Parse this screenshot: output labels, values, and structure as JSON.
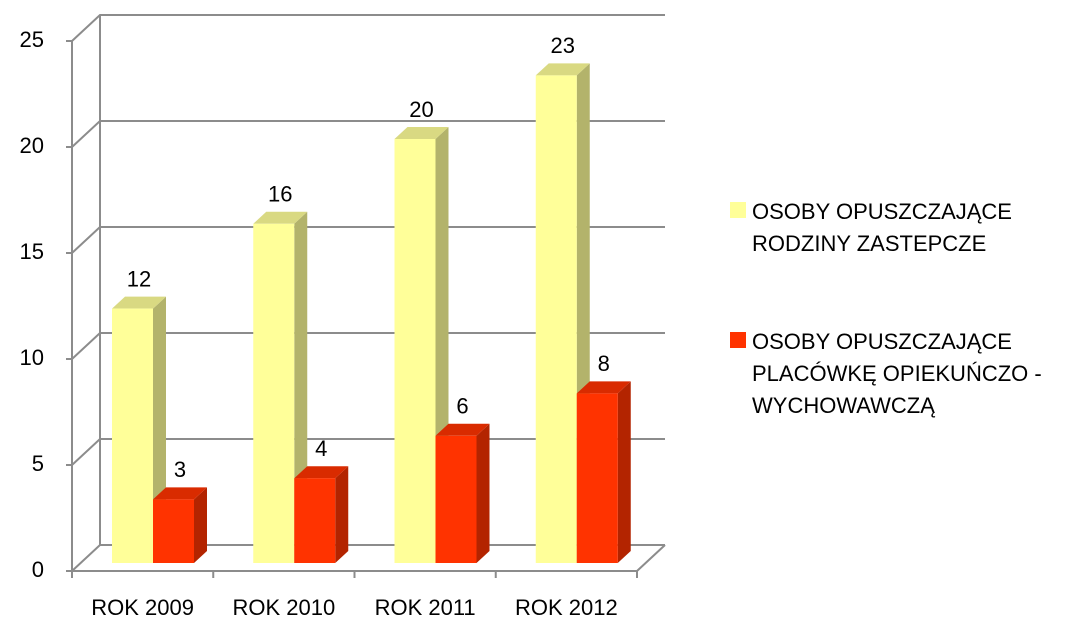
{
  "chart_data": {
    "type": "bar3d",
    "categories": [
      "ROK 2009",
      "ROK 2010",
      "ROK 2011",
      "ROK 2012"
    ],
    "series": [
      {
        "name": "OSOBY OPUSZCZAJĄCE RODZINY ZASTEPCZE",
        "color": "#ffff99",
        "values": [
          12,
          16,
          20,
          23
        ]
      },
      {
        "name": "OSOBY OPUSZCZAJĄCE PLACÓWKĘ OPIEKUŃCZO - WYCHOWAWCZĄ",
        "color": "#ff3300",
        "values": [
          3,
          4,
          6,
          8
        ]
      }
    ],
    "ylim": [
      0,
      25
    ],
    "yticks": [
      0,
      5,
      10,
      15,
      20,
      25
    ],
    "grid": true,
    "legend": "right"
  }
}
